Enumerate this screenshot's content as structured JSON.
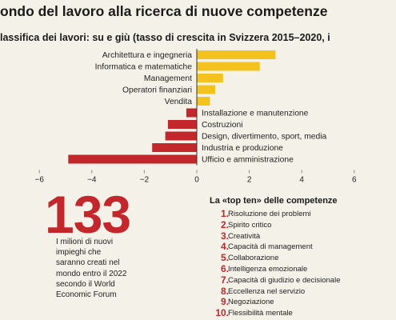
{
  "header": {
    "title": "ondo del lavoro alla ricerca di nuove competenze",
    "subtitle": "lassifica dei lavori: su e giù (tasso di crescita in Svizzera 2015–2020, i"
  },
  "chart_data": {
    "type": "bar",
    "orientation": "horizontal",
    "categories": [
      "Architettura e ingegneria",
      "Informatica e matematiche",
      "Management",
      "Operatori finanziari",
      "Vendita",
      "Installazione e manutenzione",
      "Costruzioni",
      "Design, divertimento, sport, media",
      "Industria e produzione",
      "Ufficio e amministrazione"
    ],
    "values": [
      3.0,
      2.4,
      1.0,
      0.7,
      0.5,
      -0.4,
      -1.1,
      -1.2,
      -1.7,
      -4.9
    ],
    "xlim": [
      -6,
      6
    ],
    "xticks": [
      -6,
      -4,
      -2,
      0,
      2,
      4,
      6
    ],
    "xtick_labels": [
      "−6",
      "−4",
      "−2",
      "0",
      "2",
      "4",
      "6"
    ],
    "colors": {
      "positive": "#f3c21d",
      "negative": "#c4272b",
      "axis": "#333333",
      "tick": "#888888"
    }
  },
  "stat": {
    "number": "133",
    "lines": [
      "I milioni di nuovi",
      "impieghi che",
      "saranno creati nel",
      "mondo entro il 2022",
      "secondo il World",
      "Economic Forum"
    ]
  },
  "top_ten": {
    "title": "La «top ten» delle competenze",
    "items": [
      {
        "num": "1.",
        "label": "Risoluzione dei problemi"
      },
      {
        "num": "2.",
        "label": "Spirito critico"
      },
      {
        "num": "3.",
        "label": "Creatività"
      },
      {
        "num": "4.",
        "label": "Capacità di management"
      },
      {
        "num": "5.",
        "label": "Collaborazione"
      },
      {
        "num": "6.",
        "label": "Intelligenza emozionale"
      },
      {
        "num": "7.",
        "label": "Capacità di giudizio e decisionale"
      },
      {
        "num": "8.",
        "label": "Eccellenza nel servizio"
      },
      {
        "num": "9.",
        "label": "Negoziazione"
      },
      {
        "num": "10.",
        "label": "Flessibilità mentale"
      }
    ]
  }
}
